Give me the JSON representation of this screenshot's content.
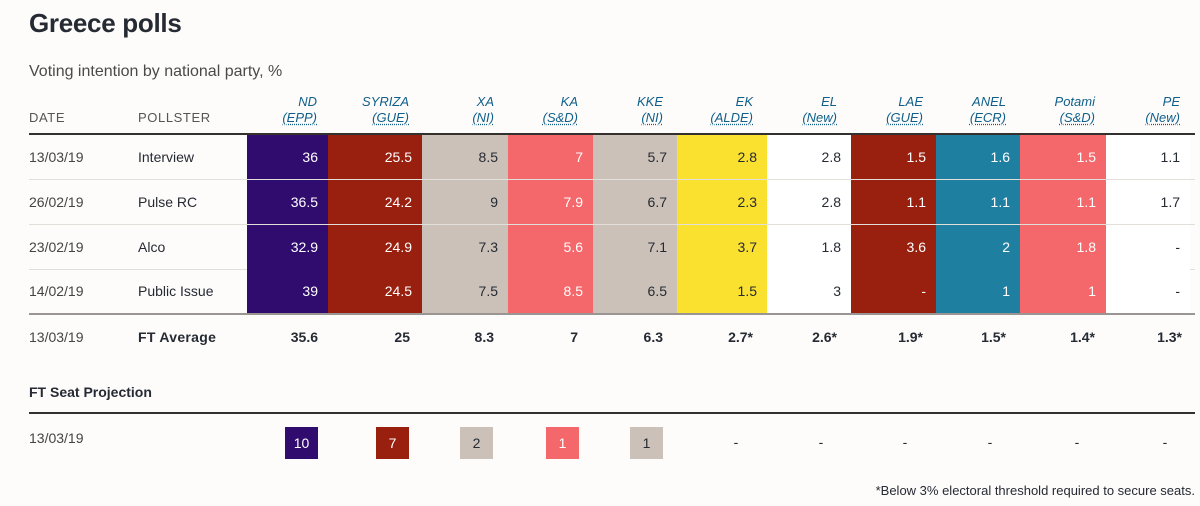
{
  "title": "Greece polls",
  "subtitle": "Voting intention by national party, %",
  "headers": {
    "date": "DATE",
    "pollster": "POLLSTER"
  },
  "parties": [
    {
      "name": "ND",
      "group": "(EPP)",
      "color": "#2f0c6e"
    },
    {
      "name": "SYRIZA",
      "group": "(GUE)",
      "color": "#991f0f"
    },
    {
      "name": "XA",
      "group": "(NI)",
      "color": "#cbc1b8"
    },
    {
      "name": "KA",
      "group": "(S&D)",
      "color": "#f4676a"
    },
    {
      "name": "KKE",
      "group": "(NI)",
      "color": "#cbc1b8"
    },
    {
      "name": "EK",
      "group": "(ALDE)",
      "color": "#fbe12f"
    },
    {
      "name": "EL",
      "group": "(New)",
      "color": "#ffffff"
    },
    {
      "name": "LAE",
      "group": "(GUE)",
      "color": "#991f0f"
    },
    {
      "name": "ANEL",
      "group": "(ECR)",
      "color": "#1f7fa0"
    },
    {
      "name": "Potami",
      "group": "(S&D)",
      "color": "#f4676a"
    },
    {
      "name": "PE",
      "group": "(New)",
      "color": "#ffffff"
    }
  ],
  "polls": [
    {
      "date": "13/03/19",
      "pollster": "Interview",
      "values": [
        "36",
        "25.5",
        "8.5",
        "7",
        "5.7",
        "2.8",
        "2.8",
        "1.5",
        "1.6",
        "1.5",
        "1.1"
      ]
    },
    {
      "date": "26/02/19",
      "pollster": "Pulse RC",
      "values": [
        "36.5",
        "24.2",
        "9",
        "7.9",
        "6.7",
        "2.3",
        "2.8",
        "1.1",
        "1.1",
        "1.1",
        "1.7"
      ]
    },
    {
      "date": "23/02/19",
      "pollster": "Alco",
      "values": [
        "32.9",
        "24.9",
        "7.3",
        "5.6",
        "7.1",
        "3.7",
        "1.8",
        "3.6",
        "2",
        "1.8",
        "-"
      ]
    },
    {
      "date": "14/02/19",
      "pollster": "Public Issue",
      "values": [
        "39",
        "24.5",
        "7.5",
        "8.5",
        "6.5",
        "1.5",
        "3",
        "-",
        "1",
        "1",
        "-"
      ]
    }
  ],
  "average": {
    "date": "13/03/19",
    "label": "FT Average",
    "values": [
      "35.6",
      "25",
      "8.3",
      "7",
      "6.3",
      "2.7*",
      "2.6*",
      "1.9*",
      "1.5*",
      "1.4*",
      "1.3*"
    ]
  },
  "seat_projection": {
    "title": "FT Seat Projection",
    "date": "13/03/19",
    "values": [
      "10",
      "7",
      "2",
      "1",
      "1",
      "-",
      "-",
      "-",
      "-",
      "-",
      "-"
    ]
  },
  "footnote": "*Below 3% electoral threshold required to secure seats."
}
